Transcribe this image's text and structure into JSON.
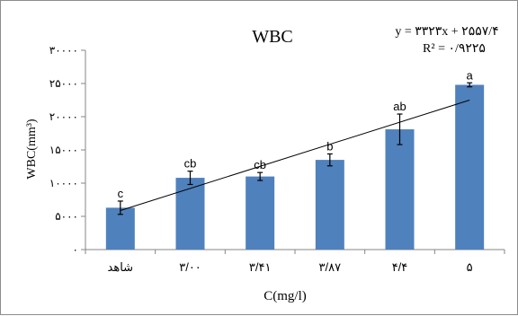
{
  "chart_data": {
    "type": "bar",
    "title": "WBC",
    "xlabel": "C(mg/l)",
    "ylabel": "WBC(mm³)",
    "ylim": [
      0,
      30000
    ],
    "yticks": [
      {
        "value": 0,
        "label": "۰"
      },
      {
        "value": 5000,
        "label": "۵۰۰۰"
      },
      {
        "value": 10000,
        "label": "۱۰۰۰۰"
      },
      {
        "value": 15000,
        "label": "۱۵۰۰۰"
      },
      {
        "value": 20000,
        "label": "۲۰۰۰۰"
      },
      {
        "value": 25000,
        "label": "۲۵۰۰۰"
      },
      {
        "value": 30000,
        "label": "۳۰۰۰۰"
      }
    ],
    "categories": [
      "شاهد",
      "۳/۰۰",
      "۳/۴۱",
      "۳/۸۷",
      "۴/۴",
      "۵"
    ],
    "values": [
      6300,
      10800,
      11000,
      13500,
      18100,
      24800
    ],
    "errors": [
      1000,
      1000,
      600,
      900,
      2300,
      300
    ],
    "significance": [
      "c",
      "cb",
      "cb",
      "b",
      "ab",
      "a"
    ],
    "trendline": {
      "equation": "y = ۳۳۲۳x + ۲۵۵۷/۴",
      "r2": "R² = ۰/۹۲۲۵",
      "slope": 3323,
      "intercept": 2557.4
    },
    "colors": {
      "bar": "#4f81bd",
      "trend": "#000000",
      "axis": "#868686"
    },
    "grid": false,
    "legend": "none"
  }
}
